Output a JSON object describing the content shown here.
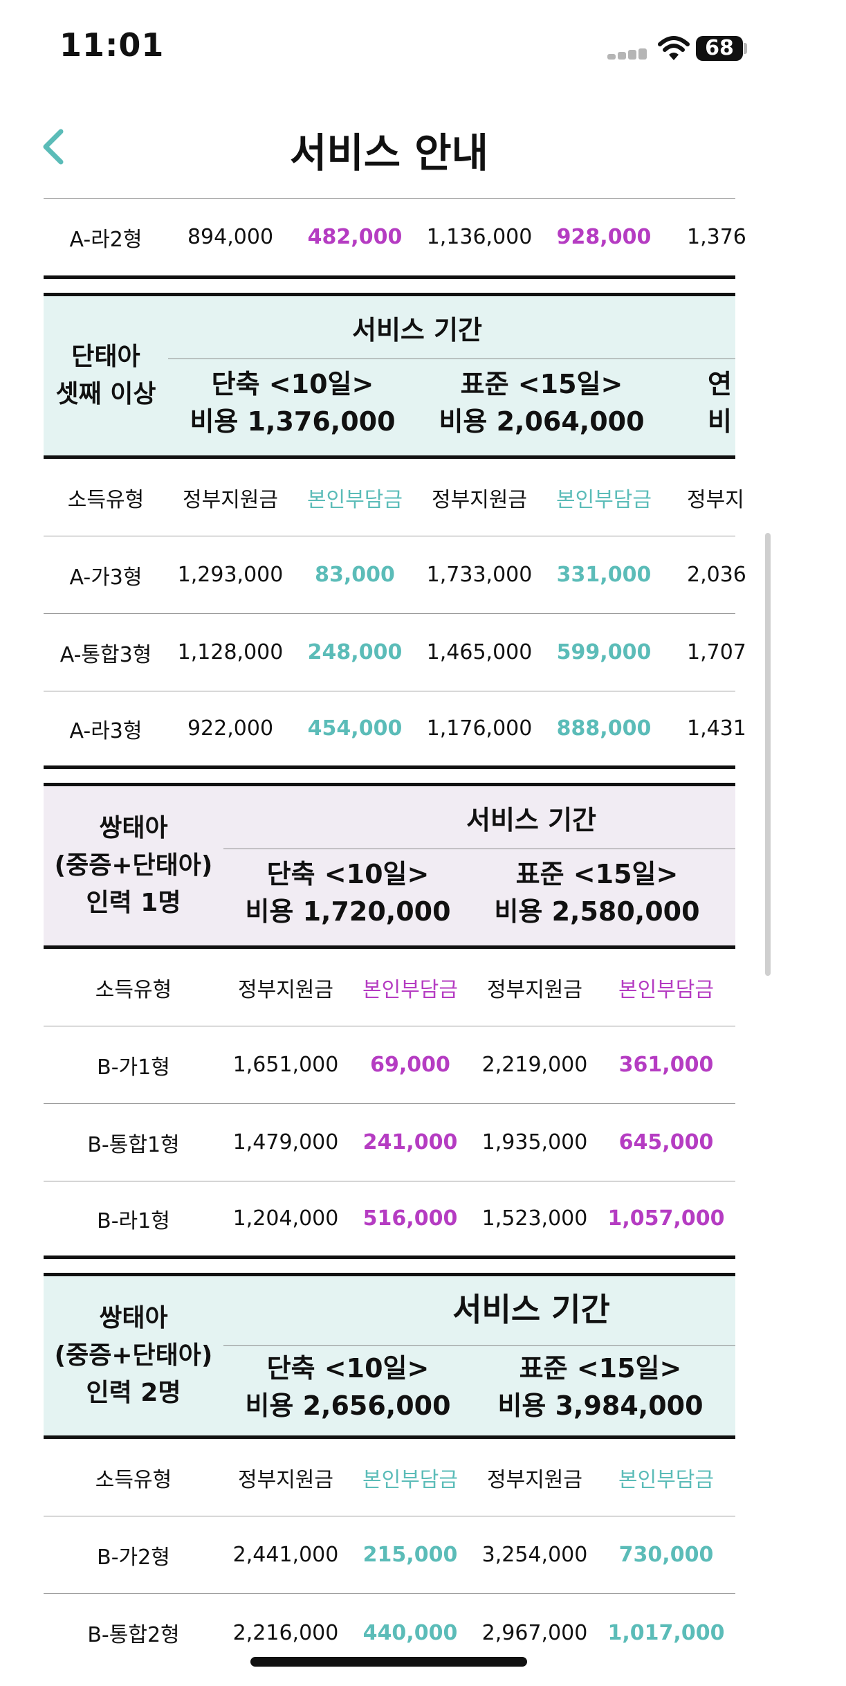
{
  "status_bar": {
    "time": "11:01",
    "battery": "68"
  },
  "nav": {
    "title": "서비스 안내"
  },
  "top_row": [
    "A-라2형",
    "894,000",
    "482,000",
    "1,136,000",
    "928,000",
    "1,376"
  ],
  "table1": {
    "group": "단태아\n셋째 이상",
    "period": "서비스 기간",
    "options": [
      "단축 <10일>\n비용 1,376,000",
      "표준 <15일>\n비용 2,064,000",
      "연\n비"
    ],
    "headers": [
      "소득유형",
      "정부지원금",
      "본인부담금",
      "정부지원금",
      "본인부담금",
      "정부지"
    ],
    "rows": [
      [
        "A-가3형",
        "1,293,000",
        "83,000",
        "1,733,000",
        "331,000",
        "2,036"
      ],
      [
        "A-통합3형",
        "1,128,000",
        "248,000",
        "1,465,000",
        "599,000",
        "1,707"
      ],
      [
        "A-라3형",
        "922,000",
        "454,000",
        "1,176,000",
        "888,000",
        "1,431"
      ]
    ]
  },
  "table2": {
    "group": "쌍태아\n(중증+단태아)\n인력 1명",
    "period": "서비스 기간",
    "options": [
      "단축 <10일>\n비용 1,720,000",
      "표준 <15일>\n비용 2,580,000"
    ],
    "headers": [
      "소득유형",
      "정부지원금",
      "본인부담금",
      "정부지원금",
      "본인부담금"
    ],
    "rows": [
      [
        "B-가1형",
        "1,651,000",
        "69,000",
        "2,219,000",
        "361,000"
      ],
      [
        "B-통합1형",
        "1,479,000",
        "241,000",
        "1,935,000",
        "645,000"
      ],
      [
        "B-라1형",
        "1,204,000",
        "516,000",
        "1,523,000",
        "1,057,000"
      ]
    ]
  },
  "table3": {
    "group": "쌍태아\n(중증+단태아)\n인력 2명",
    "period": "서비스 기간",
    "options": [
      "단축 <10일>\n비용 2,656,000",
      "표준 <15일>\n비용 3,984,000"
    ],
    "headers": [
      "소득유형",
      "정부지원금",
      "본인부담금",
      "정부지원금",
      "본인부담금"
    ],
    "rows": [
      [
        "B-가2형",
        "2,441,000",
        "215,000",
        "3,254,000",
        "730,000"
      ],
      [
        "B-통합2형",
        "2,216,000",
        "440,000",
        "2,967,000",
        "1,017,000"
      ]
    ]
  },
  "colors": {
    "teal_accent": "#5bbcb8",
    "purple_accent": "#b53cc2",
    "teal_header_bg": "#e4f3f2",
    "lavender_header_bg": "#f1ecf3"
  },
  "icons": {
    "back": "chevron-left-icon",
    "wifi": "wifi-icon",
    "signal": "cellular-signal-icon",
    "battery": "battery-icon"
  }
}
